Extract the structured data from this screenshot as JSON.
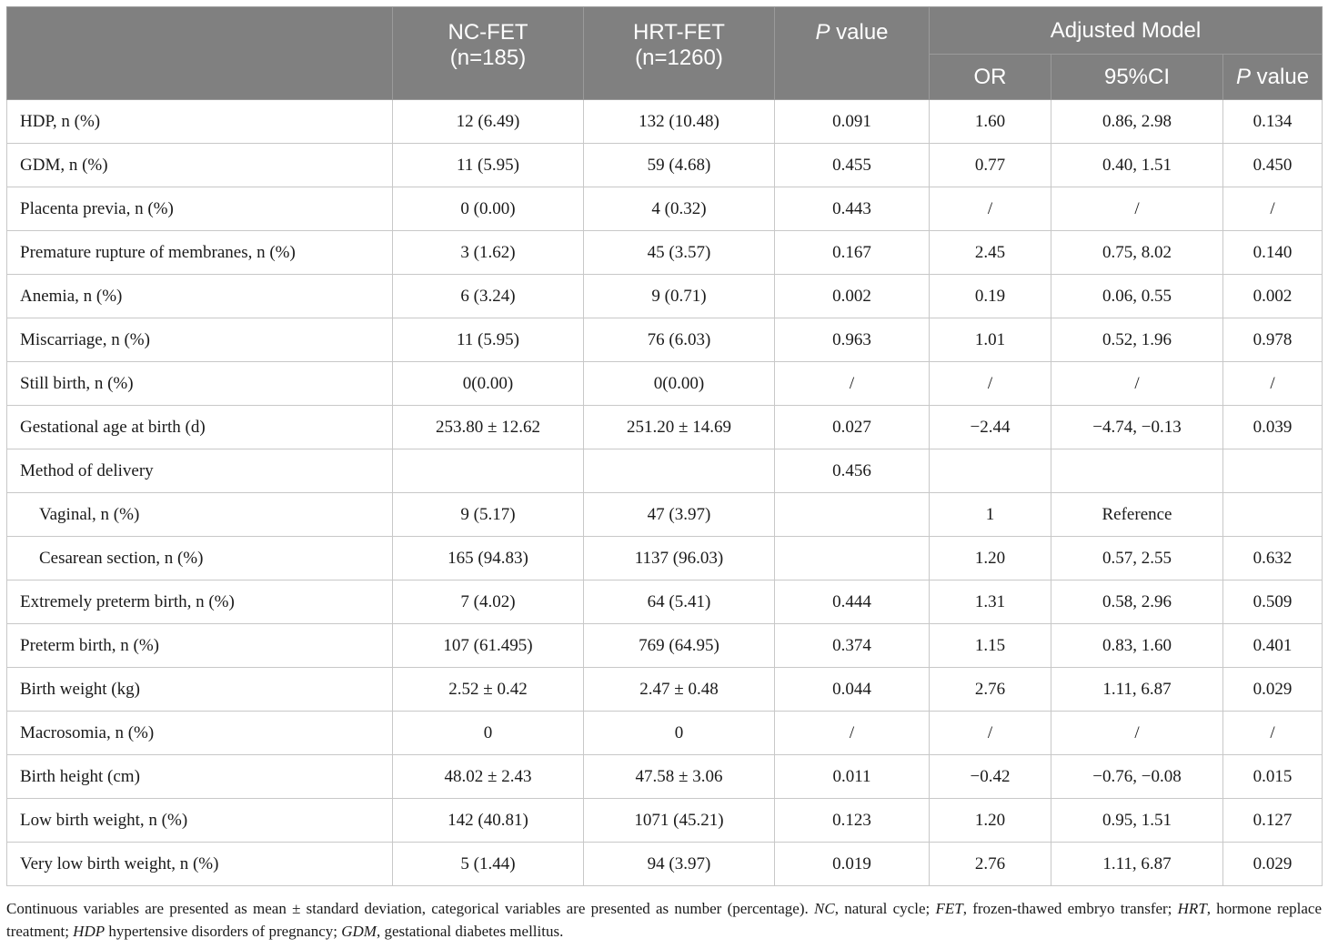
{
  "header": {
    "stub": "",
    "nc_fet": [
      "NC-FET",
      "(n=185)"
    ],
    "hrt_fet": [
      "HRT-FET",
      "(n=1260)"
    ],
    "p_value": {
      "italic": "P",
      "rest": " value"
    },
    "adjusted_model": "Adjusted Model",
    "or": "OR",
    "ci": "95%CI",
    "adj_p_value": {
      "italic": "P",
      "rest": " value"
    }
  },
  "rows": [
    {
      "label": "HDP, n (%)",
      "indent": false,
      "nc": "12 (6.49)",
      "hrt": "132 (10.48)",
      "p": "0.091",
      "or": "1.60",
      "ci": "0.86, 2.98",
      "adj_p": "0.134"
    },
    {
      "label": "GDM, n (%)",
      "indent": false,
      "nc": "11 (5.95)",
      "hrt": "59 (4.68)",
      "p": "0.455",
      "or": "0.77",
      "ci": "0.40, 1.51",
      "adj_p": "0.450"
    },
    {
      "label": "Placenta previa, n (%)",
      "indent": false,
      "nc": "0 (0.00)",
      "hrt": "4 (0.32)",
      "p": "0.443",
      "or": "/",
      "ci": "/",
      "adj_p": "/"
    },
    {
      "label": "Premature rupture of membranes, n (%)",
      "indent": false,
      "nc": "3 (1.62)",
      "hrt": "45 (3.57)",
      "p": "0.167",
      "or": "2.45",
      "ci": "0.75, 8.02",
      "adj_p": "0.140"
    },
    {
      "label": "Anemia, n (%)",
      "indent": false,
      "nc": "6 (3.24)",
      "hrt": "9 (0.71)",
      "p": "0.002",
      "or": "0.19",
      "ci": "0.06, 0.55",
      "adj_p": "0.002"
    },
    {
      "label": "Miscarriage, n (%)",
      "indent": false,
      "nc": "11 (5.95)",
      "hrt": "76 (6.03)",
      "p": "0.963",
      "or": "1.01",
      "ci": "0.52, 1.96",
      "adj_p": "0.978"
    },
    {
      "label": "Still birth, n (%)",
      "indent": false,
      "nc": "0(0.00)",
      "hrt": "0(0.00)",
      "p": "/",
      "or": "/",
      "ci": "/",
      "adj_p": "/"
    },
    {
      "label": "Gestational age at birth (d)",
      "indent": false,
      "nc": "253.80 ± 12.62",
      "hrt": "251.20 ± 14.69",
      "p": "0.027",
      "or": "−2.44",
      "ci": "−4.74, −0.13",
      "adj_p": "0.039"
    },
    {
      "label": "Method of delivery",
      "indent": false,
      "nc": "",
      "hrt": "",
      "p": "0.456",
      "or": "",
      "ci": "",
      "adj_p": ""
    },
    {
      "label": "Vaginal, n (%)",
      "indent": true,
      "nc": "9 (5.17)",
      "hrt": "47 (3.97)",
      "p": "",
      "or": "1",
      "ci": "Reference",
      "adj_p": ""
    },
    {
      "label": "Cesarean section, n (%)",
      "indent": true,
      "nc": "165 (94.83)",
      "hrt": "1137 (96.03)",
      "p": "",
      "or": "1.20",
      "ci": "0.57, 2.55",
      "adj_p": "0.632"
    },
    {
      "label": "Extremely preterm birth, n (%)",
      "indent": false,
      "nc": "7 (4.02)",
      "hrt": "64 (5.41)",
      "p": "0.444",
      "or": "1.31",
      "ci": "0.58, 2.96",
      "adj_p": "0.509"
    },
    {
      "label": "Preterm birth, n (%)",
      "indent": false,
      "nc": "107 (61.495)",
      "hrt": "769 (64.95)",
      "p": "0.374",
      "or": "1.15",
      "ci": "0.83, 1.60",
      "adj_p": "0.401"
    },
    {
      "label": "Birth weight (kg)",
      "indent": false,
      "nc": "2.52 ± 0.42",
      "hrt": "2.47 ± 0.48",
      "p": "0.044",
      "or": "2.76",
      "ci": "1.11, 6.87",
      "adj_p": "0.029"
    },
    {
      "label": "Macrosomia, n (%)",
      "indent": false,
      "nc": "0",
      "hrt": "0",
      "p": "/",
      "or": "/",
      "ci": "/",
      "adj_p": "/"
    },
    {
      "label": "Birth height (cm)",
      "indent": false,
      "nc": "48.02 ± 2.43",
      "hrt": "47.58 ± 3.06",
      "p": "0.011",
      "or": "−0.42",
      "ci": "−0.76, −0.08",
      "adj_p": "0.015"
    },
    {
      "label": "Low birth weight, n (%)",
      "indent": false,
      "nc": "142 (40.81)",
      "hrt": "1071 (45.21)",
      "p": "0.123",
      "or": "1.20",
      "ci": "0.95, 1.51",
      "adj_p": "0.127"
    },
    {
      "label": "Very low birth weight, n (%)",
      "indent": false,
      "nc": "5 (1.44)",
      "hrt": "94 (3.97)",
      "p": "0.019",
      "or": "2.76",
      "ci": "1.11, 6.87",
      "adj_p": "0.029"
    }
  ],
  "footnote": [
    {
      "t": "Continuous variables are presented as mean ± standard deviation, categorical variables are presented as number (percentage). ",
      "i": false
    },
    {
      "t": "NC",
      "i": true
    },
    {
      "t": ", natural cycle; ",
      "i": false
    },
    {
      "t": "FET",
      "i": true
    },
    {
      "t": ", frozen-thawed embryo transfer; ",
      "i": false
    },
    {
      "t": "HRT",
      "i": true
    },
    {
      "t": ", hormone replace treatment; ",
      "i": false
    },
    {
      "t": "HDP",
      "i": true
    },
    {
      "t": " hypertensive disorders of pregnancy; ",
      "i": false
    },
    {
      "t": "GDM",
      "i": true
    },
    {
      "t": ", gestational diabetes mellitus.",
      "i": false
    }
  ]
}
